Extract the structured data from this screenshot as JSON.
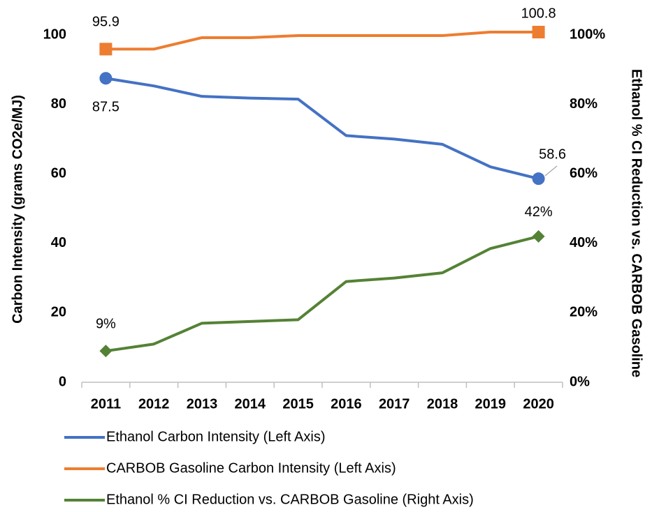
{
  "chart_data": {
    "type": "line",
    "categories": [
      "2011",
      "2012",
      "2013",
      "2014",
      "2015",
      "2016",
      "2017",
      "2018",
      "2019",
      "2020"
    ],
    "ylabel": "Carbon Intensity (grams CO2e/MJ)",
    "y2label": "Ethanol % CI Reduction vs. CARBOB Gasoline",
    "ylim": [
      0,
      100
    ],
    "yticks": [
      0,
      20,
      40,
      60,
      80,
      100
    ],
    "y2lim": [
      0,
      100
    ],
    "y2ticks": [
      {
        "value": 0,
        "label": "0%"
      },
      {
        "value": 20,
        "label": "20%"
      },
      {
        "value": 40,
        "label": "40%"
      },
      {
        "value": 60,
        "label": "60%"
      },
      {
        "value": 80,
        "label": "80%"
      },
      {
        "value": 100,
        "label": "100%"
      }
    ],
    "legend": "bottom",
    "series": [
      {
        "name": "Ethanol Carbon Intensity (Left Axis)",
        "color": "#4472c4",
        "marker": "circle",
        "values": [
          87.5,
          85.3,
          82.3,
          81.8,
          81.5,
          71,
          70,
          68.5,
          62,
          58.6
        ],
        "value_labels": [
          "87.5",
          null,
          null,
          null,
          null,
          null,
          null,
          null,
          null,
          "58.6"
        ]
      },
      {
        "name": "CARBOB Gasoline Carbon Intensity (Left Axis)",
        "color": "#ed7d31",
        "marker": "square",
        "values": [
          95.9,
          95.9,
          99.2,
          99.2,
          99.8,
          99.8,
          99.8,
          99.8,
          100.8,
          100.8
        ],
        "value_labels": [
          "95.9",
          null,
          null,
          null,
          null,
          null,
          null,
          null,
          null,
          "100.8"
        ]
      },
      {
        "name": "Ethanol % CI Reduction vs. CARBOB Gasoline (Right Axis)",
        "color": "#548235",
        "marker": "diamond",
        "axis": "y2",
        "values": [
          9,
          11,
          17,
          17.5,
          18,
          29,
          30,
          31.5,
          38.5,
          42
        ],
        "value_labels": [
          "9%",
          null,
          null,
          null,
          null,
          null,
          null,
          null,
          null,
          "42%"
        ]
      }
    ]
  }
}
